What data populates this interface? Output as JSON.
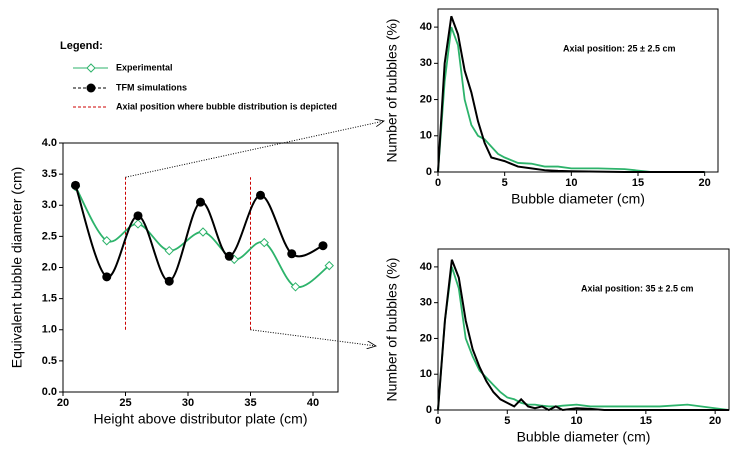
{
  "chart_data": [
    {
      "type": "line",
      "legend_title": "Legend:",
      "xlabel": "Height above distributor plate (cm)",
      "ylabel": "Equivalent bubble diameter (cm)",
      "xlim": [
        20,
        42
      ],
      "xticks": [
        20,
        25,
        30,
        35,
        40
      ],
      "ylim": [
        0,
        4
      ],
      "yticks": [
        {
          "value": 0,
          "label": "0.0"
        },
        {
          "value": 0.5,
          "label": "0.5"
        },
        {
          "value": 1,
          "label": "1.0"
        },
        {
          "value": 1.5,
          "label": "1.5"
        },
        {
          "value": 2,
          "label": "2.0"
        },
        {
          "value": 2.5,
          "label": "2.5"
        },
        {
          "value": 3,
          "label": "3.0"
        },
        {
          "value": 3.5,
          "label": "3.5"
        },
        {
          "value": 4,
          "label": "4.0"
        }
      ],
      "series": [
        {
          "name": "Experimental",
          "color": "#2db36b",
          "marker": "diamond",
          "x": [
            21,
            23.5,
            26,
            28.5,
            31.2,
            33.7,
            36.1,
            38.6,
            41.3
          ],
          "values": [
            3.3,
            2.43,
            2.7,
            2.27,
            2.57,
            2.13,
            2.4,
            1.69,
            2.03
          ]
        },
        {
          "name": "TFM simulations",
          "color": "#000000",
          "marker": "circle",
          "x": [
            21,
            23.5,
            26,
            28.5,
            31,
            33.3,
            35.8,
            38.3,
            40.8
          ],
          "values": [
            3.32,
            1.85,
            2.83,
            1.78,
            3.05,
            2.18,
            3.16,
            2.22,
            2.35
          ]
        }
      ],
      "axial_marker_name": "Axial position where bubble distribution is depicted",
      "axial_marker_color": "#cc0000",
      "axial_markers": [
        {
          "x": 25,
          "y": [
            1.0,
            3.45
          ]
        },
        {
          "x": 35,
          "y": [
            1.0,
            3.45
          ]
        }
      ]
    },
    {
      "type": "line",
      "annotation": "Axial position: 25 ± 2.5 cm",
      "xlabel": "Bubble diameter (cm)",
      "ylabel": "Number of bubbles  (%)",
      "xlim": [
        0,
        21
      ],
      "xticks": [
        0,
        5,
        10,
        15,
        20
      ],
      "ylim": [
        0,
        45
      ],
      "yticks": [
        0,
        10,
        20,
        30,
        40
      ],
      "x": [
        0,
        0.5,
        1,
        1.5,
        2,
        2.5,
        3,
        3.5,
        4,
        4.5,
        5,
        6,
        7,
        8,
        9,
        10,
        12,
        14,
        16,
        18,
        20
      ],
      "series": [
        {
          "color": "#2db36b",
          "values": [
            0,
            25,
            40,
            35,
            20,
            13,
            10,
            9,
            7,
            5,
            4,
            2.5,
            2.3,
            1.5,
            1.5,
            1,
            1,
            0.8,
            0,
            0,
            0
          ]
        },
        {
          "color": "#000000",
          "values": [
            0,
            30,
            43,
            38,
            28,
            22,
            14,
            8,
            4,
            3.5,
            3,
            1.5,
            1,
            0.5,
            0.3,
            0.2,
            0.1,
            0,
            0,
            0,
            0
          ]
        }
      ]
    },
    {
      "type": "line",
      "annotation": "Axial position: 35 ± 2.5 cm",
      "xlabel": "Bubble diameter (cm)",
      "ylabel": "Number of bubbles  (%)",
      "xlim": [
        0,
        21
      ],
      "xticks": [
        0,
        5,
        10,
        15,
        20
      ],
      "ylim": [
        0,
        45
      ],
      "yticks": [
        0,
        10,
        20,
        30,
        40
      ],
      "x": [
        0,
        0.5,
        1,
        1.5,
        2,
        2.5,
        3,
        3.5,
        4,
        4.5,
        5,
        5.5,
        6,
        6.5,
        7,
        7.5,
        8,
        8.5,
        9,
        10,
        11,
        12,
        14,
        16,
        18,
        20,
        21
      ],
      "series": [
        {
          "color": "#2db36b",
          "values": [
            0,
            25,
            40,
            34,
            20,
            15,
            11,
            9,
            7,
            5,
            3.5,
            3,
            2,
            1.5,
            1.5,
            1.2,
            1,
            1,
            1.2,
            1.5,
            1,
            1,
            1,
            1,
            1.5,
            0.5,
            0
          ]
        },
        {
          "color": "#000000",
          "values": [
            0,
            25,
            42,
            37,
            25,
            17,
            12,
            8,
            5,
            3,
            2,
            1,
            3,
            1,
            0.5,
            1,
            0,
            1,
            0,
            0.5,
            0.3,
            0,
            0,
            0,
            0,
            0,
            0
          ]
        }
      ]
    }
  ]
}
